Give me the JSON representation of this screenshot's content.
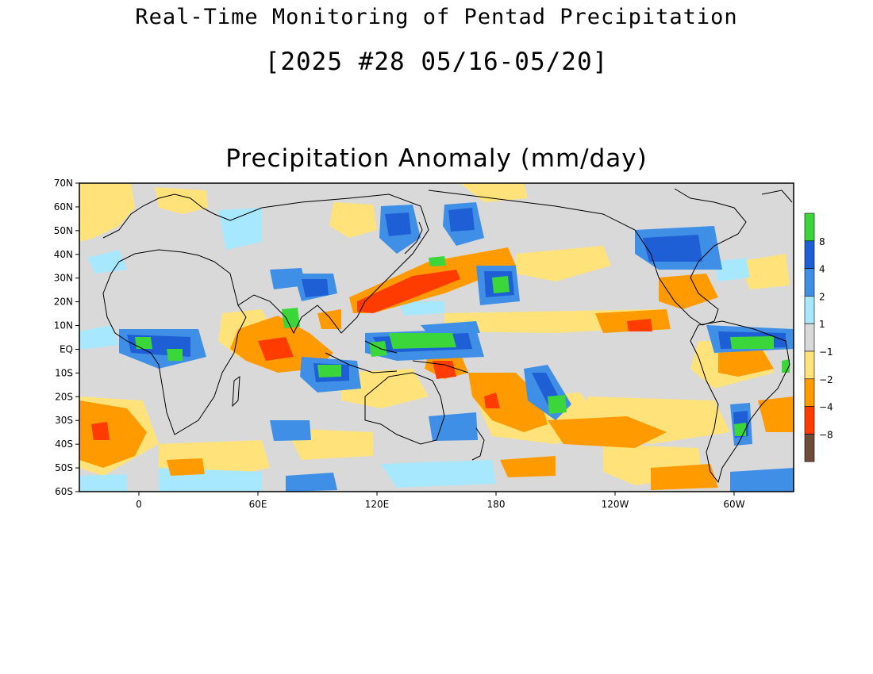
{
  "titles": {
    "main": "Real-Time Monitoring of Pentad Precipitation",
    "period": "[2025 #28 05/16-05/20]",
    "panel": "Precipitation Anomaly (mm/day)"
  },
  "map": {
    "lat_range": [
      -60,
      70
    ],
    "lon_range": [
      -30,
      330
    ],
    "lat_ticks": [
      "70N",
      "60N",
      "50N",
      "40N",
      "30N",
      "20N",
      "10N",
      "EQ",
      "10S",
      "20S",
      "30S",
      "40S",
      "50S",
      "60S"
    ],
    "lon_ticks": [
      "0",
      "60E",
      "120E",
      "180",
      "120W",
      "60W"
    ],
    "background_color": "#d9d9d9"
  },
  "colorbar": {
    "labels": [
      "8",
      "4",
      "2",
      "1",
      "−1",
      "−2",
      "−4",
      "−8"
    ],
    "colors": [
      "#3ad63a",
      "#1f5fd6",
      "#3f8fe6",
      "#a8e8ff",
      "#d9d9d9",
      "#ffe37a",
      "#ff9a00",
      "#ff3c00",
      "#6e4b3a"
    ]
  }
}
